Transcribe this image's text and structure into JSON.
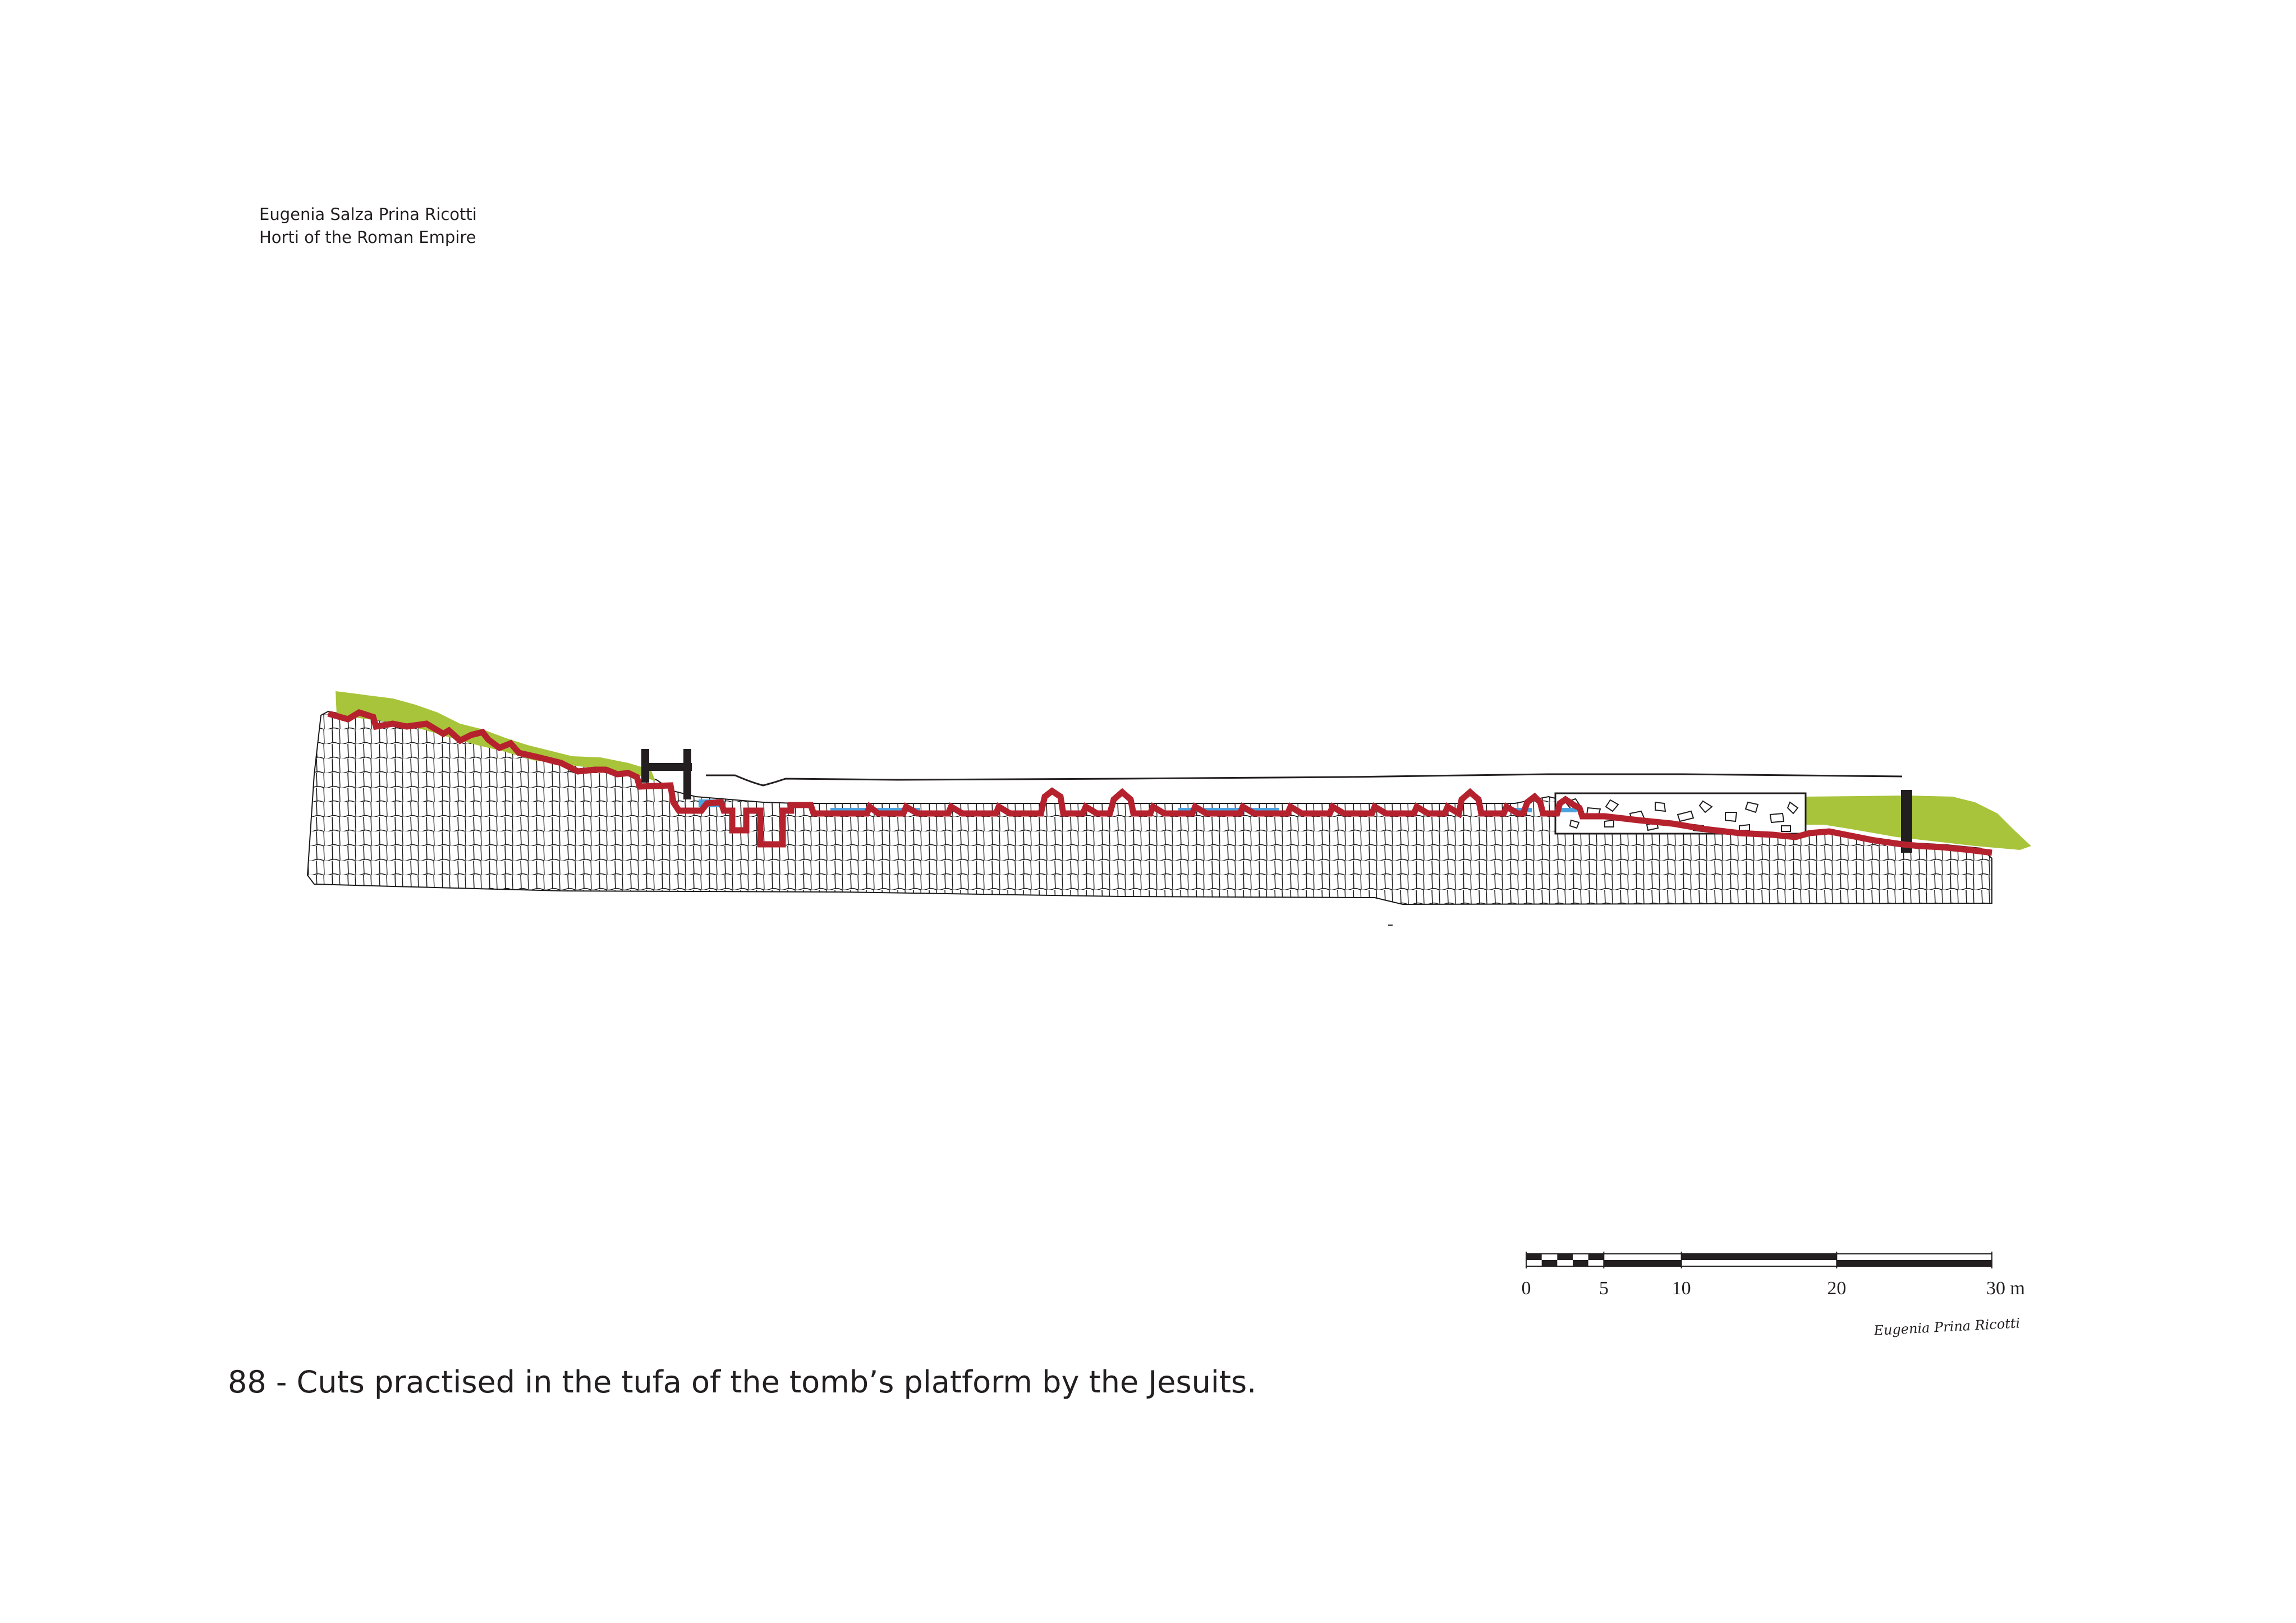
{
  "header": {
    "author": "Eugenia Salza Prina Ricotti",
    "book": "Horti of the Roman Empire"
  },
  "caption": "88 - Cuts practised in the tufa of  the tomb’s platform by the Jesuits.",
  "scale_bar": {
    "ticks": [
      "0",
      "5",
      "10",
      "20",
      "30 m"
    ],
    "tick_values": [
      0,
      5,
      10,
      20,
      30
    ]
  },
  "signature": "Eugenia Prina Ricotti",
  "colors": {
    "cut_line": "#b5222e",
    "vegetation": "#a8c43a",
    "water": "#4aa3df",
    "wall": "#231f20",
    "tufa_lines": "#1a1a1a"
  }
}
